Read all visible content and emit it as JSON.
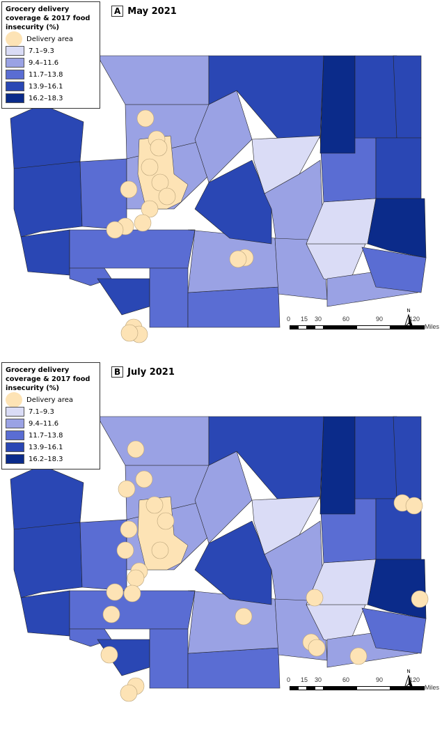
{
  "legend": {
    "title": "Grocery delivery coverage & 2017 food insecurity (%)",
    "delivery_label": "Delivery area",
    "delivery_color": "#fde3b5",
    "classes": [
      {
        "label": "7.1–9.3",
        "color": "#dadcf6"
      },
      {
        "label": "9.4–11.6",
        "color": "#9aa2e4"
      },
      {
        "label": "11.7–13.8",
        "color": "#5a6dd3"
      },
      {
        "label": "13.9–16.1",
        "color": "#2a47b4"
      },
      {
        "label": "16.2–18.3",
        "color": "#0b2b8a"
      }
    ]
  },
  "panels": [
    {
      "letter": "A",
      "title": "May 2021"
    },
    {
      "letter": "B",
      "title": "July 2021"
    }
  ],
  "scale": {
    "ticks": [
      "0",
      "15",
      "30",
      "60",
      "90",
      "120"
    ],
    "unit": "Miles",
    "north": "N"
  }
}
